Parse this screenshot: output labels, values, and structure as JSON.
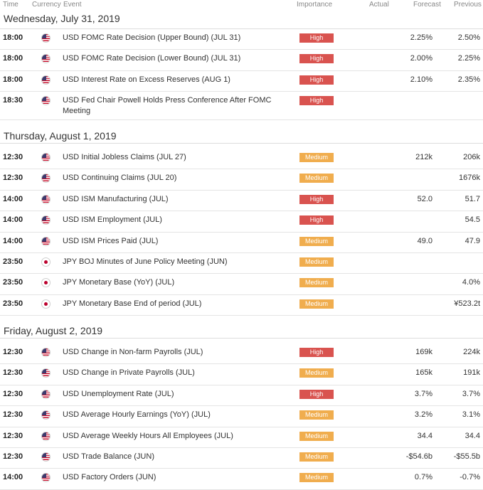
{
  "columns": {
    "time": "Time",
    "currency": "Currency",
    "event": "Event",
    "importance": "Importance",
    "actual": "Actual",
    "forecast": "Forecast",
    "previous": "Previous"
  },
  "colors": {
    "high": "#d9534f",
    "medium": "#f0ad4e",
    "us_flag": "#3c3b6e",
    "jp_flag": "#bc002d"
  },
  "days": [
    {
      "title": "Wednesday, July 31, 2019",
      "rows": [
        {
          "time": "18:00",
          "flag": "us-flag-icon",
          "event": "USD FOMC Rate Decision (Upper Bound) (JUL 31)",
          "importance": "High",
          "actual": "",
          "forecast": "2.25%",
          "previous": "2.50%"
        },
        {
          "time": "18:00",
          "flag": "us-flag-icon",
          "event": "USD FOMC Rate Decision (Lower Bound) (JUL 31)",
          "importance": "High",
          "actual": "",
          "forecast": "2.00%",
          "previous": "2.25%"
        },
        {
          "time": "18:00",
          "flag": "us-flag-icon",
          "event": "USD Interest Rate on Excess Reserves (AUG 1)",
          "importance": "High",
          "actual": "",
          "forecast": "2.10%",
          "previous": "2.35%"
        },
        {
          "time": "18:30",
          "flag": "us-flag-icon",
          "event": "USD Fed Chair Powell Holds Press Conference After FOMC Meeting",
          "importance": "High",
          "actual": "",
          "forecast": "",
          "previous": ""
        }
      ]
    },
    {
      "title": "Thursday, August 1, 2019",
      "rows": [
        {
          "time": "12:30",
          "flag": "us-flag-icon",
          "event": "USD Initial Jobless Claims (JUL 27)",
          "importance": "Medium",
          "actual": "",
          "forecast": "212k",
          "previous": "206k"
        },
        {
          "time": "12:30",
          "flag": "us-flag-icon",
          "event": "USD Continuing Claims (JUL 20)",
          "importance": "Medium",
          "actual": "",
          "forecast": "",
          "previous": "1676k"
        },
        {
          "time": "14:00",
          "flag": "us-flag-icon",
          "event": "USD ISM Manufacturing (JUL)",
          "importance": "High",
          "actual": "",
          "forecast": "52.0",
          "previous": "51.7"
        },
        {
          "time": "14:00",
          "flag": "us-flag-icon",
          "event": "USD ISM Employment (JUL)",
          "importance": "High",
          "actual": "",
          "forecast": "",
          "previous": "54.5"
        },
        {
          "time": "14:00",
          "flag": "us-flag-icon",
          "event": "USD ISM Prices Paid (JUL)",
          "importance": "Medium",
          "actual": "",
          "forecast": "49.0",
          "previous": "47.9"
        },
        {
          "time": "23:50",
          "flag": "jp-flag-icon",
          "event": "JPY BOJ Minutes of June Policy Meeting (JUN)",
          "importance": "Medium",
          "actual": "",
          "forecast": "",
          "previous": ""
        },
        {
          "time": "23:50",
          "flag": "jp-flag-icon",
          "event": "JPY Monetary Base (YoY) (JUL)",
          "importance": "Medium",
          "actual": "",
          "forecast": "",
          "previous": "4.0%"
        },
        {
          "time": "23:50",
          "flag": "jp-flag-icon",
          "event": "JPY Monetary Base End of period (JUL)",
          "importance": "Medium",
          "actual": "",
          "forecast": "",
          "previous": "¥523.2t"
        }
      ]
    },
    {
      "title": "Friday, August 2, 2019",
      "rows": [
        {
          "time": "12:30",
          "flag": "us-flag-icon",
          "event": "USD Change in Non-farm Payrolls (JUL)",
          "importance": "High",
          "actual": "",
          "forecast": "169k",
          "previous": "224k"
        },
        {
          "time": "12:30",
          "flag": "us-flag-icon",
          "event": "USD Change in Private Payrolls (JUL)",
          "importance": "Medium",
          "actual": "",
          "forecast": "165k",
          "previous": "191k"
        },
        {
          "time": "12:30",
          "flag": "us-flag-icon",
          "event": "USD Unemployment Rate (JUL)",
          "importance": "High",
          "actual": "",
          "forecast": "3.7%",
          "previous": "3.7%"
        },
        {
          "time": "12:30",
          "flag": "us-flag-icon",
          "event": "USD Average Hourly Earnings (YoY) (JUL)",
          "importance": "Medium",
          "actual": "",
          "forecast": "3.2%",
          "previous": "3.1%"
        },
        {
          "time": "12:30",
          "flag": "us-flag-icon",
          "event": "USD Average Weekly Hours All Employees (JUL)",
          "importance": "Medium",
          "actual": "",
          "forecast": "34.4",
          "previous": "34.4"
        },
        {
          "time": "12:30",
          "flag": "us-flag-icon",
          "event": "USD Trade Balance (JUN)",
          "importance": "Medium",
          "actual": "",
          "forecast": "-$54.6b",
          "previous": "-$55.5b"
        },
        {
          "time": "14:00",
          "flag": "us-flag-icon",
          "event": "USD Factory Orders (JUN)",
          "importance": "Medium",
          "actual": "",
          "forecast": "0.7%",
          "previous": "-0.7%"
        }
      ]
    }
  ]
}
